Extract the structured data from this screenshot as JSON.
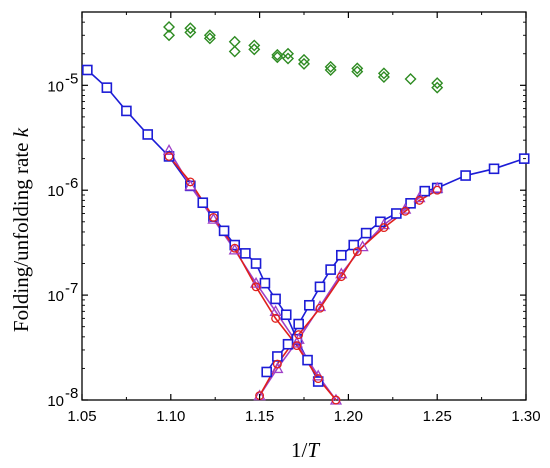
{
  "chart_data": {
    "type": "scatter",
    "xlabel": "1/T",
    "ylabel": "Folding/unfolding rate k",
    "xlim": [
      1.05,
      1.3
    ],
    "ylim": [
      1e-08,
      5e-05
    ],
    "yscale": "log",
    "grid": false,
    "legend": "none",
    "x_ticks": [
      1.05,
      1.1,
      1.15,
      1.2,
      1.25,
      1.3
    ],
    "x_tick_labels": [
      "1.05",
      "1.10",
      "1.15",
      "1.20",
      "1.25",
      "1.30"
    ],
    "y_ticks": [
      1e-08,
      1e-07,
      1e-06,
      1e-05
    ],
    "y_tick_labels": [
      "10",
      "10",
      "10",
      "10"
    ],
    "y_tick_exponents": [
      "-8",
      "-7",
      "-6",
      "-5"
    ],
    "series": [
      {
        "marker": "diamond",
        "color": "#2e8b22",
        "line": false,
        "points": [
          [
            1.099,
            3.6e-05
          ],
          [
            1.099,
            3e-05
          ],
          [
            1.111,
            3.5e-05
          ],
          [
            1.111,
            3.2e-05
          ],
          [
            1.122,
            3e-05
          ],
          [
            1.122,
            2.8e-05
          ],
          [
            1.136,
            2.6e-05
          ],
          [
            1.136,
            2.1e-05
          ],
          [
            1.147,
            2.4e-05
          ],
          [
            1.147,
            2.2e-05
          ],
          [
            1.16,
            1.95e-05
          ],
          [
            1.16,
            1.85e-05
          ],
          [
            1.166,
            2e-05
          ],
          [
            1.166,
            1.8e-05
          ],
          [
            1.175,
            1.75e-05
          ],
          [
            1.175,
            1.6e-05
          ],
          [
            1.19,
            1.5e-05
          ],
          [
            1.19,
            1.4e-05
          ],
          [
            1.205,
            1.45e-05
          ],
          [
            1.205,
            1.35e-05
          ],
          [
            1.22,
            1.3e-05
          ],
          [
            1.22,
            1.2e-05
          ],
          [
            1.235,
            1.15e-05
          ],
          [
            1.25,
            1.05e-05
          ],
          [
            1.25,
            9.5e-06
          ]
        ]
      },
      {
        "marker": "square",
        "color": "#1c1cd6",
        "line": true,
        "points": [
          [
            1.053,
            1.4e-05
          ],
          [
            1.064,
            9.5e-06
          ],
          [
            1.075,
            5.7e-06
          ],
          [
            1.087,
            3.4e-06
          ],
          [
            1.099,
            2.1e-06
          ],
          [
            1.111,
            1.1e-06
          ],
          [
            1.118,
            7.6e-07
          ],
          [
            1.124,
            5.6e-07
          ],
          [
            1.13,
            4.1e-07
          ],
          [
            1.136,
            3e-07
          ],
          [
            1.142,
            2.5e-07
          ],
          [
            1.148,
            2e-07
          ],
          [
            1.153,
            1.3e-07
          ],
          [
            1.159,
            9.2e-08
          ],
          [
            1.165,
            6.5e-08
          ],
          [
            1.171,
            3.8e-08
          ],
          [
            1.177,
            2.4e-08
          ],
          [
            1.183,
            1.5e-08
          ]
        ]
      },
      {
        "marker": "square",
        "color": "#1c1cd6",
        "line": true,
        "points": [
          [
            1.154,
            1.85e-08
          ],
          [
            1.16,
            2.6e-08
          ],
          [
            1.166,
            3.4e-08
          ],
          [
            1.172,
            5.3e-08
          ],
          [
            1.178,
            8e-08
          ],
          [
            1.184,
            1.2e-07
          ],
          [
            1.19,
            1.75e-07
          ],
          [
            1.196,
            2.4e-07
          ],
          [
            1.203,
            3e-07
          ],
          [
            1.21,
            3.9e-07
          ],
          [
            1.218,
            5e-07
          ],
          [
            1.227,
            6e-07
          ],
          [
            1.235,
            7.5e-07
          ],
          [
            1.243,
            9.8e-07
          ],
          [
            1.25,
            1.05e-06
          ],
          [
            1.266,
            1.38e-06
          ],
          [
            1.282,
            1.6e-06
          ],
          [
            1.299,
            2e-06
          ]
        ]
      },
      {
        "marker": "triangle",
        "color": "#a040c8",
        "line": true,
        "points": [
          [
            1.099,
            2.4e-06
          ],
          [
            1.111,
            1.1e-06
          ],
          [
            1.124,
            5.3e-07
          ],
          [
            1.136,
            2.7e-07
          ],
          [
            1.148,
            1.3e-07
          ],
          [
            1.159,
            7e-08
          ],
          [
            1.171,
            3.5e-08
          ],
          [
            1.183,
            1.7e-08
          ],
          [
            1.193,
            1e-08
          ]
        ]
      },
      {
        "marker": "triangle",
        "color": "#a040c8",
        "line": true,
        "points": [
          [
            1.15,
            1.1e-08
          ],
          [
            1.16,
            2e-08
          ],
          [
            1.172,
            3.8e-08
          ],
          [
            1.184,
            7.8e-08
          ],
          [
            1.196,
            1.6e-07
          ],
          [
            1.208,
            2.9e-07
          ],
          [
            1.22,
            4.7e-07
          ],
          [
            1.232,
            6.6e-07
          ],
          [
            1.24,
            8.5e-07
          ],
          [
            1.25,
            1.05e-06
          ]
        ]
      },
      {
        "marker": "circle",
        "color": "#e0201c",
        "line": true,
        "points": [
          [
            1.099,
            2.1e-06
          ],
          [
            1.111,
            1.2e-06
          ],
          [
            1.124,
            5.5e-07
          ],
          [
            1.136,
            2.8e-07
          ],
          [
            1.148,
            1.2e-07
          ],
          [
            1.159,
            6e-08
          ],
          [
            1.171,
            3.3e-08
          ],
          [
            1.183,
            1.6e-08
          ],
          [
            1.193,
            1e-08
          ]
        ]
      },
      {
        "marker": "circle",
        "color": "#e0201c",
        "line": true,
        "points": [
          [
            1.15,
            1.1e-08
          ],
          [
            1.16,
            2.2e-08
          ],
          [
            1.172,
            4.2e-08
          ],
          [
            1.184,
            7.5e-08
          ],
          [
            1.196,
            1.5e-07
          ],
          [
            1.205,
            2.6e-07
          ],
          [
            1.22,
            4.4e-07
          ],
          [
            1.232,
            6.3e-07
          ],
          [
            1.24,
            8e-07
          ],
          [
            1.25,
            1e-06
          ]
        ]
      }
    ]
  }
}
